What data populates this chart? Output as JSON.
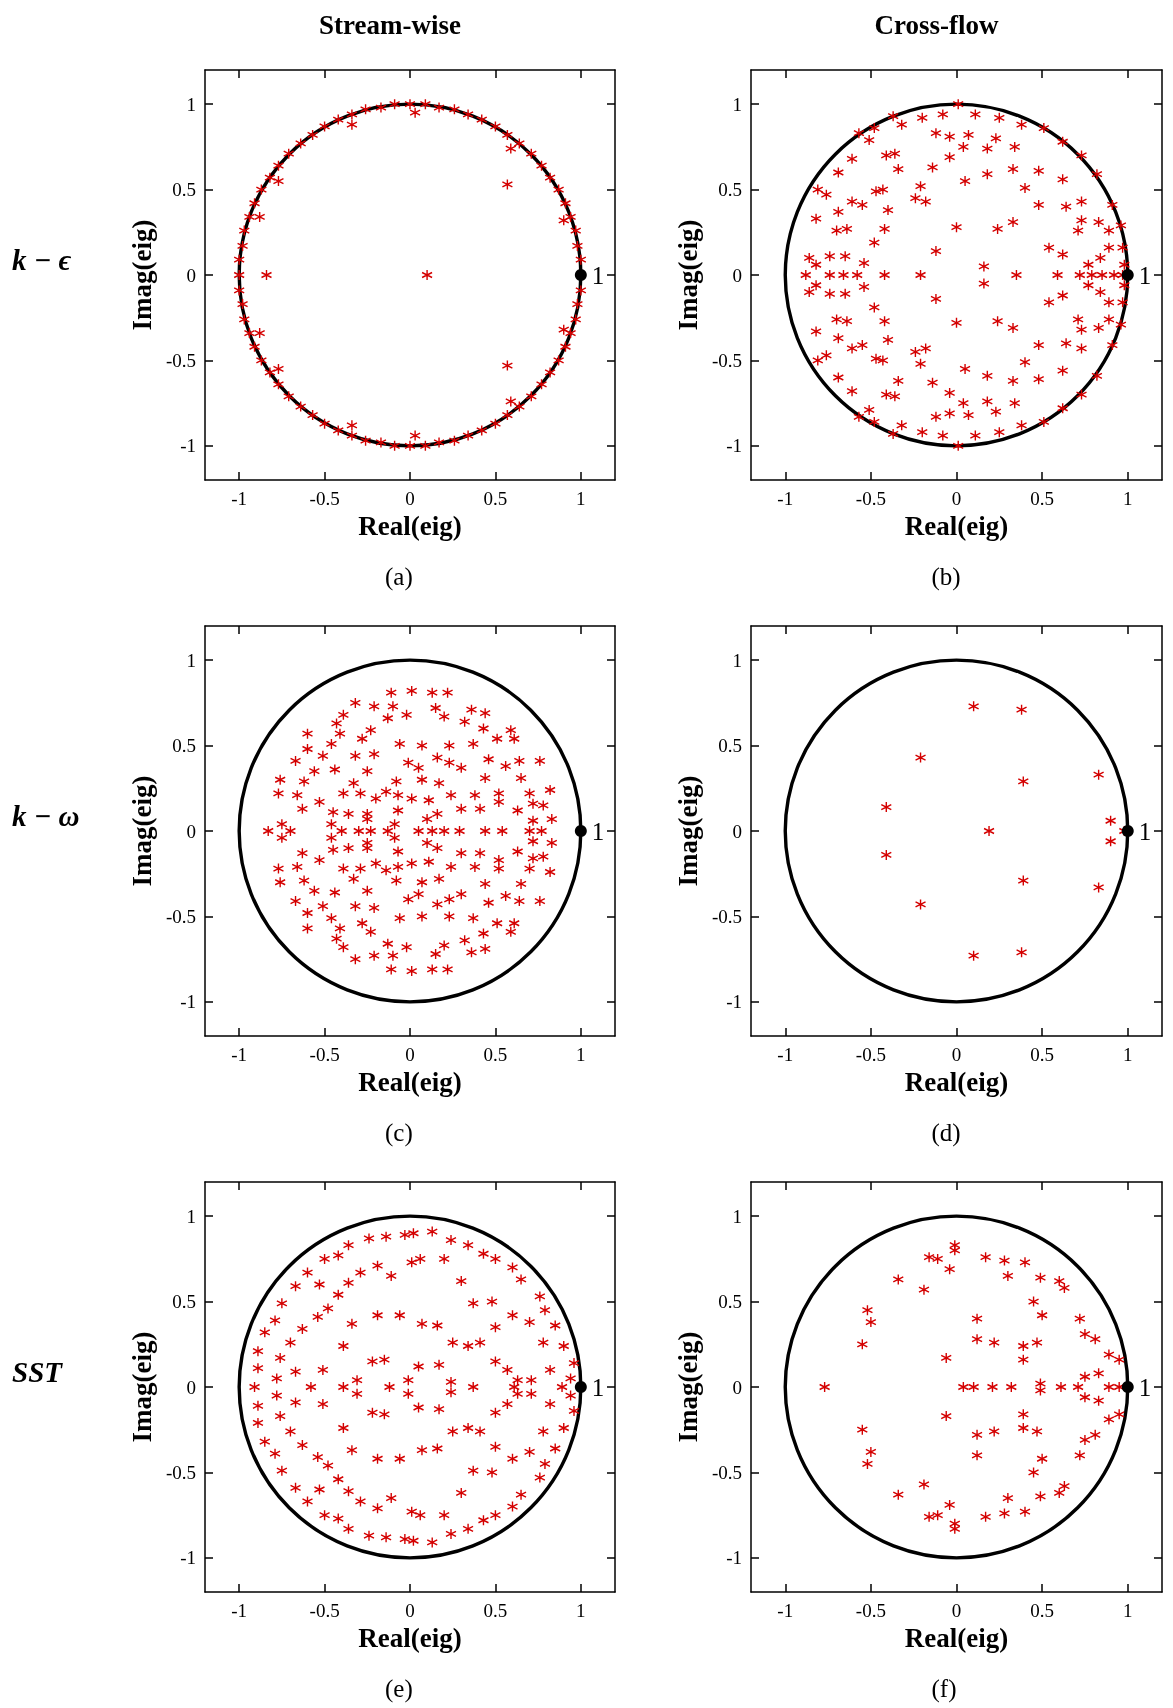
{
  "chart_data": [
    {
      "type": "scatter",
      "title": "Stream-wise",
      "subtitle": "(a)",
      "annotations": [
        "k − ϵ"
      ],
      "xlabel": "Real(eig)",
      "ylabel": "Imag(eig)",
      "marker": "cross",
      "xlim": [
        -1.2,
        1.2
      ],
      "ylim": [
        -1.2,
        1.2
      ],
      "xticks": [
        -1,
        -0.5,
        0,
        0.5,
        1
      ],
      "yticks": [
        -1,
        -0.5,
        0,
        0.5,
        1
      ],
      "series": [
        {
          "color": "#d40000",
          "x": [
            1,
            0.98,
            0.97,
            0.94,
            0.91,
            0.87,
            0.82,
            0.77,
            0.71,
            0.64,
            0.57,
            0.5,
            0.42,
            0.34,
            0.26,
            0.17,
            0.09,
            0,
            -0.09,
            -0.17,
            -0.26,
            -0.34,
            -0.42,
            -0.5,
            -0.57,
            -0.64,
            -0.71,
            -0.77,
            -0.82,
            -0.87,
            -0.91,
            -0.94,
            -0.97,
            -0.98,
            -1,
            -1,
            -1,
            -0.98,
            -0.97,
            -0.94,
            -0.91,
            -0.87,
            -0.82,
            -0.77,
            -0.71,
            -0.64,
            -0.57,
            -0.5,
            -0.42,
            -0.34,
            -0.26,
            -0.17,
            -0.09,
            0,
            0.09,
            0.17,
            0.26,
            0.34,
            0.42,
            0.5,
            0.57,
            0.64,
            0.71,
            0.77,
            0.82,
            0.87,
            0.91,
            0.94,
            0.97,
            0.98,
            1,
            -0.34,
            0.03,
            0.57,
            0.57,
            0.9,
            0.9,
            -0.84,
            0.1,
            -0.77,
            -0.88,
            -0.88,
            -0.77,
            0.59,
            0.59,
            0.03,
            -0.34
          ],
          "values": [
            0.09,
            0.17,
            0.26,
            0.34,
            0.42,
            0.5,
            0.57,
            0.64,
            0.71,
            0.77,
            0.82,
            0.87,
            0.91,
            0.94,
            0.97,
            0.98,
            1,
            1,
            1,
            0.98,
            0.97,
            0.94,
            0.91,
            0.87,
            0.82,
            0.77,
            0.71,
            0.64,
            0.57,
            0.5,
            0.42,
            0.34,
            0.26,
            0.17,
            0.09,
            0,
            -0.09,
            -0.17,
            -0.26,
            -0.34,
            -0.42,
            -0.5,
            -0.57,
            -0.64,
            -0.71,
            -0.77,
            -0.82,
            -0.87,
            -0.91,
            -0.94,
            -0.97,
            -0.98,
            -1,
            -1,
            -1,
            -0.98,
            -0.97,
            -0.94,
            -0.91,
            -0.87,
            -0.82,
            -0.77,
            -0.71,
            -0.64,
            -0.57,
            -0.5,
            -0.42,
            -0.34,
            -0.26,
            -0.17,
            -0.09,
            0.88,
            0.95,
            0.53,
            -0.53,
            0.32,
            -0.32,
            0,
            0,
            0.55,
            0.34,
            -0.34,
            -0.55,
            0.74,
            -0.74,
            -0.94,
            -0.88
          ]
        },
        {
          "name": "1",
          "color": "#000000",
          "marker": "circle",
          "x": [
            1
          ],
          "values": [
            0
          ]
        }
      ]
    },
    {
      "type": "scatter",
      "title": "Cross-flow",
      "subtitle": "(b)",
      "xlabel": "Real(eig)",
      "ylabel": "Imag(eig)",
      "marker": "cross",
      "xlim": [
        -1.2,
        1.2
      ],
      "ylim": [
        -1.2,
        1.2
      ],
      "xticks": [
        -1,
        -0.5,
        0,
        0.5,
        1
      ],
      "yticks": [
        -1,
        -0.5,
        0,
        0.5,
        1
      ],
      "series": [
        {
          "color": "#d40000",
          "x": [
            0.01,
            -0.37,
            -0.57,
            -0.48,
            -0.32,
            -0.2,
            -0.08,
            0.11,
            0.25,
            0.38,
            0.51,
            0.62,
            0.73,
            0.82,
            0.91,
            0.96,
            0.97,
            0.98,
            -0.12,
            -0.04,
            0.07,
            0.23,
            0.34,
            0.48,
            0.62,
            0.73,
            0.83,
            0.89,
            -0.51,
            -0.61,
            -0.69,
            -0.76,
            -0.81,
            -0.82,
            -0.86,
            -0.82,
            -0.74,
            -0.65,
            -0.7,
            -0.64,
            -0.69,
            -0.61,
            -0.55,
            -0.47,
            -0.43,
            -0.36,
            -0.41,
            -0.34,
            -0.14,
            -0.04,
            0.04,
            0.18,
            0.33,
            0.4,
            0.48,
            0.64,
            0.73,
            0.71,
            0.62,
            0.54,
            0.77,
            0.84,
            0.89,
            0.05,
            0.18,
            -0.21,
            -0.24,
            -0.18,
            -0.4,
            -0.42,
            -0.48,
            -0.54,
            0,
            0.24,
            0.33,
            -0.12,
            0.16,
            0.01,
            -0.37,
            -0.57,
            -0.48,
            -0.32,
            -0.2,
            -0.08,
            0.11,
            0.25,
            0.38,
            0.51,
            0.62,
            0.73,
            0.82,
            0.91,
            0.96,
            0.97,
            0.98,
            -0.12,
            -0.04,
            0.07,
            0.23,
            0.34,
            0.48,
            0.62,
            0.73,
            0.83,
            0.89,
            -0.51,
            -0.61,
            -0.69,
            -0.76,
            -0.81,
            -0.82,
            -0.86,
            -0.82,
            -0.74,
            -0.65,
            -0.7,
            -0.64,
            -0.69,
            -0.61,
            -0.55,
            -0.47,
            -0.43,
            -0.36,
            -0.41,
            -0.34,
            -0.14,
            -0.04,
            0.04,
            0.18,
            0.33,
            0.4,
            0.48,
            0.64,
            0.73,
            0.71,
            0.62,
            0.54,
            0.77,
            0.84,
            0.89,
            0.05,
            0.18,
            -0.21,
            -0.24,
            -0.18,
            -0.4,
            -0.42,
            -0.48,
            -0.54,
            0,
            0.24,
            0.33,
            -0.12,
            0.16,
            -0.88,
            -0.74,
            -0.66,
            -0.58,
            -0.42,
            -0.21,
            0.35,
            0.59,
            0.72,
            0.79,
            0.85,
            0.92,
            0.97
          ],
          "values": [
            1,
            0.93,
            0.83,
            0.86,
            0.88,
            0.92,
            0.94,
            0.94,
            0.92,
            0.88,
            0.86,
            0.78,
            0.7,
            0.59,
            0.41,
            0.29,
            0.16,
            0.06,
            0.83,
            0.81,
            0.82,
            0.8,
            0.75,
            0.61,
            0.56,
            0.43,
            0.31,
            0.16,
            0.79,
            0.68,
            0.6,
            0.47,
            0.5,
            0.33,
            0.1,
            0.06,
            0.11,
            0.11,
            0.26,
            0.27,
            0.37,
            0.43,
            0.41,
            0.49,
            0.5,
            0.71,
            0.7,
            0.62,
            0.63,
            0.69,
            0.75,
            0.74,
            0.62,
            0.51,
            0.41,
            0.4,
            0.32,
            0.26,
            0.12,
            0.16,
            0.06,
            0.1,
            0.26,
            0.55,
            0.59,
            0.52,
            0.45,
            0.43,
            0.38,
            0.27,
            0.19,
            0.07,
            0.28,
            0.27,
            0.31,
            0.14,
            0.05,
            -1,
            -0.93,
            -0.83,
            -0.86,
            -0.88,
            -0.92,
            -0.94,
            -0.94,
            -0.92,
            -0.88,
            -0.86,
            -0.78,
            -0.7,
            -0.59,
            -0.41,
            -0.29,
            -0.16,
            -0.06,
            -0.83,
            -0.81,
            -0.82,
            -0.8,
            -0.75,
            -0.61,
            -0.56,
            -0.43,
            -0.31,
            -0.16,
            -0.79,
            -0.68,
            -0.6,
            -0.47,
            -0.5,
            -0.33,
            -0.1,
            -0.06,
            -0.11,
            -0.11,
            -0.26,
            -0.27,
            -0.37,
            -0.43,
            -0.41,
            -0.49,
            -0.5,
            -0.71,
            -0.7,
            -0.62,
            -0.63,
            -0.69,
            -0.75,
            -0.74,
            -0.62,
            -0.51,
            -0.41,
            -0.4,
            -0.32,
            -0.26,
            -0.12,
            -0.16,
            -0.06,
            -0.1,
            -0.26,
            -0.55,
            -0.59,
            -0.52,
            -0.45,
            -0.43,
            -0.38,
            -0.27,
            -0.19,
            -0.07,
            -0.28,
            -0.27,
            -0.31,
            -0.14,
            -0.05,
            0,
            0,
            0,
            0,
            0,
            0,
            0,
            0,
            0,
            0,
            0,
            0,
            0
          ]
        },
        {
          "name": "1",
          "color": "#000000",
          "marker": "circle",
          "x": [
            1
          ],
          "values": [
            0
          ]
        }
      ]
    },
    {
      "type": "scatter",
      "subtitle": "(c)",
      "annotations": [
        "k − ω"
      ],
      "xlabel": "Real(eig)",
      "ylabel": "Imag(eig)",
      "marker": "cross",
      "xlim": [
        -1.2,
        1.2
      ],
      "ylim": [
        -1.2,
        1.2
      ],
      "xticks": [
        -1,
        -0.5,
        0,
        0.5,
        1
      ],
      "yticks": [
        -1,
        -0.5,
        0,
        0.5,
        1
      ],
      "series": [
        {
          "color": "#d40000",
          "x": [
            -0.11,
            0.01,
            0.13,
            0.22,
            -0.32,
            -0.21,
            -0.1,
            0.15,
            0.36,
            0.44,
            -0.39,
            -0.13,
            -0.02,
            0.2,
            0.32,
            -0.6,
            -0.43,
            0.43,
            0.59,
            0.51,
            0.61,
            -0.41,
            -0.23,
            -0.46,
            -0.28,
            -0.06,
            0.07,
            0.23,
            0.37,
            -0.6,
            -0.51,
            -0.32,
            -0.21,
            0.16,
            0.46,
            -0.67,
            0.64,
            0.76,
            0.56,
            -0.01,
            -0.56,
            -0.44,
            -0.25,
            0.05,
            0.23,
            0.3,
            -0.76,
            -0.62,
            -0.33,
            -0.08,
            0.07,
            0.17,
            0.44,
            0.65,
            -0.77,
            -0.66,
            -0.39,
            -0.29,
            -0.14,
            0.01,
            0.24,
            0.38,
            0.52,
            0.7,
            0.82,
            -0.53,
            -0.2,
            -0.07,
            0.11,
            0.52,
            0.72,
            0.78,
            -0.63,
            -0.45,
            -0.36,
            -0.25,
            -0.07,
            0.16,
            0.3,
            0.41,
            0.63,
            0.83,
            -0.75,
            -0.46,
            -0.25,
            0.1,
            0.72,
            -0.09,
            -0.11,
            0.01,
            0.13,
            0.22,
            -0.32,
            -0.21,
            -0.1,
            0.15,
            0.36,
            0.44,
            -0.39,
            -0.13,
            -0.02,
            0.2,
            0.32,
            -0.6,
            -0.43,
            0.43,
            0.59,
            0.51,
            0.61,
            -0.41,
            -0.23,
            -0.46,
            -0.28,
            -0.06,
            0.07,
            0.23,
            0.37,
            -0.6,
            -0.51,
            -0.32,
            -0.21,
            0.16,
            0.46,
            -0.67,
            0.64,
            0.76,
            0.56,
            -0.01,
            -0.56,
            -0.44,
            -0.25,
            0.05,
            0.23,
            0.3,
            -0.76,
            -0.62,
            -0.33,
            -0.08,
            0.07,
            0.17,
            0.44,
            0.65,
            -0.77,
            -0.66,
            -0.39,
            -0.29,
            -0.14,
            0.01,
            0.24,
            0.38,
            0.52,
            0.7,
            0.82,
            -0.53,
            -0.2,
            -0.07,
            0.11,
            0.52,
            0.72,
            0.78,
            -0.63,
            -0.45,
            -0.36,
            -0.25,
            -0.07,
            0.16,
            0.3,
            0.41,
            0.63,
            0.83,
            -0.75,
            -0.46,
            -0.25,
            0.1,
            0.72,
            -0.09,
            -0.83,
            -0.7,
            -0.4,
            -0.3,
            -0.23,
            -0.13,
            0.05,
            0.13,
            0.2,
            0.29,
            0.44,
            0.54,
            0.7,
            0.77
          ],
          "values": [
            0.81,
            0.82,
            0.81,
            0.81,
            0.75,
            0.73,
            0.73,
            0.72,
            0.71,
            0.69,
            0.68,
            0.66,
            0.68,
            0.67,
            0.64,
            0.57,
            0.63,
            0.6,
            0.59,
            0.54,
            0.54,
            0.57,
            0.59,
            0.51,
            0.54,
            0.51,
            0.5,
            0.5,
            0.51,
            0.48,
            0.44,
            0.44,
            0.45,
            0.43,
            0.42,
            0.41,
            0.41,
            0.41,
            0.38,
            0.4,
            0.35,
            0.36,
            0.35,
            0.37,
            0.4,
            0.37,
            0.3,
            0.29,
            0.28,
            0.29,
            0.3,
            0.28,
            0.31,
            0.31,
            0.22,
            0.21,
            0.22,
            0.22,
            0.23,
            0.19,
            0.21,
            0.21,
            0.22,
            0.22,
            0.24,
            0.17,
            0.19,
            0.21,
            0.18,
            0.17,
            0.16,
            0.15,
            0.13,
            0.11,
            0.1,
            0.1,
            0.12,
            0.1,
            0.13,
            0.13,
            0.12,
            0.07,
            0.04,
            0.04,
            0.07,
            0.07,
            0.06,
            0.04,
            -0.81,
            -0.82,
            -0.81,
            -0.81,
            -0.75,
            -0.73,
            -0.73,
            -0.72,
            -0.71,
            -0.69,
            -0.68,
            -0.66,
            -0.68,
            -0.67,
            -0.64,
            -0.57,
            -0.63,
            -0.6,
            -0.59,
            -0.54,
            -0.54,
            -0.57,
            -0.59,
            -0.51,
            -0.54,
            -0.51,
            -0.5,
            -0.5,
            -0.51,
            -0.48,
            -0.44,
            -0.44,
            -0.45,
            -0.43,
            -0.42,
            -0.41,
            -0.41,
            -0.41,
            -0.38,
            -0.4,
            -0.35,
            -0.36,
            -0.35,
            -0.37,
            -0.4,
            -0.37,
            -0.3,
            -0.29,
            -0.28,
            -0.29,
            -0.3,
            -0.28,
            -0.31,
            -0.31,
            -0.22,
            -0.21,
            -0.22,
            -0.22,
            -0.23,
            -0.19,
            -0.21,
            -0.21,
            -0.22,
            -0.22,
            -0.24,
            -0.17,
            -0.19,
            -0.21,
            -0.18,
            -0.17,
            -0.16,
            -0.15,
            -0.13,
            -0.11,
            -0.1,
            -0.1,
            -0.12,
            -0.1,
            -0.13,
            -0.13,
            -0.12,
            -0.07,
            -0.04,
            -0.04,
            -0.07,
            -0.07,
            -0.06,
            -0.04,
            0,
            0,
            0,
            0,
            0,
            0,
            0,
            0,
            0,
            0,
            0,
            0,
            0,
            0
          ]
        },
        {
          "name": "1",
          "color": "#000000",
          "marker": "circle",
          "x": [
            1
          ],
          "values": [
            0
          ]
        }
      ]
    },
    {
      "type": "scatter",
      "subtitle": "(d)",
      "xlabel": "Real(eig)",
      "ylabel": "Imag(eig)",
      "marker": "cross",
      "xlim": [
        -1.2,
        1.2
      ],
      "ylim": [
        -1.2,
        1.2
      ],
      "xticks": [
        -1,
        -0.5,
        0,
        0.5,
        1
      ],
      "yticks": [
        -1,
        -0.5,
        0,
        0.5,
        1
      ],
      "series": [
        {
          "color": "#d40000",
          "x": [
            0.1,
            0.38,
            -0.21,
            0.83,
            0.39,
            -0.41,
            0.9,
            0.19,
            0.98,
            0.9,
            -0.41,
            0.39,
            0.83,
            -0.21,
            0.38,
            0.1
          ],
          "values": [
            0.73,
            0.71,
            0.43,
            0.33,
            0.29,
            0.14,
            0.06,
            0,
            0,
            -0.06,
            -0.14,
            -0.29,
            -0.33,
            -0.43,
            -0.71,
            -0.73
          ]
        },
        {
          "name": "1",
          "color": "#000000",
          "marker": "circle",
          "x": [
            1
          ],
          "values": [
            0
          ]
        }
      ]
    },
    {
      "type": "scatter",
      "subtitle": "(e)",
      "annotations": [
        "SST"
      ],
      "xlabel": "Real(eig)",
      "ylabel": "Imag(eig)",
      "marker": "cross",
      "xlim": [
        -1.2,
        1.2
      ],
      "ylim": [
        -1.2,
        1.2
      ],
      "xticks": [
        -1,
        -0.5,
        0,
        0.5,
        1
      ],
      "yticks": [
        -1,
        -0.5,
        0,
        0.5,
        1
      ],
      "series": [
        {
          "color": "#d40000",
          "x": [
            -0.89,
            -0.89,
            -0.85,
            -0.79,
            -0.75,
            -0.67,
            -0.6,
            -0.53,
            -0.5,
            -0.42,
            -0.36,
            -0.24,
            -0.14,
            -0.03,
            0.02,
            0.13,
            0.24,
            0.34,
            0.43,
            0.5,
            0.6,
            0.65,
            0.76,
            0.79,
            0.85,
            0.9,
            0.96,
            0.94,
            0.78,
            0.7,
            0.6,
            0.48,
            0.37,
            0.3,
            0.2,
            0.06,
            0.01,
            -0.11,
            -0.19,
            -0.29,
            -0.36,
            -0.42,
            -0.48,
            -0.54,
            -0.63,
            -0.7,
            -0.76,
            -0.78,
            -0.67,
            -0.51,
            -0.39,
            -0.34,
            -0.19,
            -0.06,
            0.07,
            0.16,
            0.25,
            0.34,
            0.41,
            0.5,
            0.5,
            0.57,
            0.63,
            0.71,
            0.82,
            -0.22,
            -0.31,
            -0.15,
            -0.01,
            0.05,
            0.17,
            0.24,
            -0.89,
            -0.89,
            -0.85,
            -0.79,
            -0.75,
            -0.67,
            -0.6,
            -0.53,
            -0.5,
            -0.42,
            -0.36,
            -0.24,
            -0.14,
            -0.03,
            0.02,
            0.13,
            0.24,
            0.34,
            0.43,
            0.5,
            0.6,
            0.65,
            0.76,
            0.79,
            0.85,
            0.9,
            0.96,
            0.94,
            0.78,
            0.7,
            0.6,
            0.48,
            0.37,
            0.3,
            0.2,
            0.06,
            0.01,
            -0.11,
            -0.19,
            -0.29,
            -0.36,
            -0.42,
            -0.48,
            -0.54,
            -0.63,
            -0.7,
            -0.76,
            -0.78,
            -0.67,
            -0.51,
            -0.39,
            -0.34,
            -0.19,
            -0.06,
            0.07,
            0.16,
            0.25,
            0.34,
            0.41,
            0.5,
            0.5,
            0.57,
            0.63,
            0.71,
            0.82,
            -0.22,
            -0.31,
            -0.15,
            -0.01,
            0.05,
            0.17,
            0.24,
            -0.91,
            -0.58,
            -0.39,
            -0.12,
            0.37,
            0.61,
            0.89
          ],
          "values": [
            0.21,
            0.11,
            0.32,
            0.39,
            0.49,
            0.59,
            0.67,
            0.6,
            0.75,
            0.77,
            0.83,
            0.87,
            0.88,
            0.89,
            0.9,
            0.91,
            0.86,
            0.83,
            0.78,
            0.75,
            0.7,
            0.63,
            0.53,
            0.45,
            0.36,
            0.24,
            0.14,
            0.05,
            0.26,
            0.38,
            0.42,
            0.5,
            0.49,
            0.62,
            0.75,
            0.75,
            0.73,
            0.65,
            0.71,
            0.67,
            0.61,
            0.54,
            0.46,
            0.41,
            0.34,
            0.26,
            0.17,
            0.05,
            0.09,
            0.1,
            0.24,
            0.37,
            0.42,
            0.42,
            0.37,
            0.36,
            0.26,
            0.24,
            0.26,
            0.35,
            0.15,
            0.1,
            0.04,
            0.04,
            0.1,
            0.15,
            0.04,
            0.16,
            0.04,
            0.12,
            0.13,
            0.03,
            -0.21,
            -0.11,
            -0.32,
            -0.39,
            -0.49,
            -0.59,
            -0.67,
            -0.6,
            -0.75,
            -0.77,
            -0.83,
            -0.87,
            -0.88,
            -0.89,
            -0.9,
            -0.91,
            -0.86,
            -0.83,
            -0.78,
            -0.75,
            -0.7,
            -0.63,
            -0.53,
            -0.45,
            -0.36,
            -0.24,
            -0.14,
            -0.05,
            -0.26,
            -0.38,
            -0.42,
            -0.5,
            -0.49,
            -0.62,
            -0.75,
            -0.75,
            -0.73,
            -0.65,
            -0.71,
            -0.67,
            -0.61,
            -0.54,
            -0.46,
            -0.41,
            -0.34,
            -0.26,
            -0.17,
            -0.05,
            -0.09,
            -0.1,
            -0.24,
            -0.37,
            -0.42,
            -0.42,
            -0.37,
            -0.36,
            -0.26,
            -0.24,
            -0.26,
            -0.35,
            -0.15,
            -0.1,
            -0.04,
            -0.04,
            -0.1,
            -0.15,
            -0.04,
            -0.16,
            -0.04,
            -0.12,
            -0.13,
            -0.03,
            0,
            0,
            0,
            0,
            0,
            0,
            0
          ]
        },
        {
          "name": "1",
          "color": "#000000",
          "marker": "circle",
          "x": [
            1
          ],
          "values": [
            0
          ]
        }
      ]
    },
    {
      "type": "scatter",
      "subtitle": "(f)",
      "xlabel": "Real(eig)",
      "ylabel": "Imag(eig)",
      "marker": "cross",
      "xlim": [
        -1.2,
        1.2
      ],
      "ylim": [
        -1.2,
        1.2
      ],
      "xticks": [
        -1,
        -0.5,
        0,
        0.5,
        1
      ],
      "yticks": [
        -1,
        -0.5,
        0,
        0.5,
        1
      ],
      "series": [
        {
          "color": "#d40000",
          "x": [
            -0.01,
            -0.01,
            -0.16,
            -0.11,
            -0.04,
            -0.34,
            -0.19,
            0.17,
            0.28,
            0.4,
            0.3,
            0.49,
            0.6,
            0.63,
            0.45,
            0.5,
            -0.52,
            -0.5,
            -0.55,
            0.12,
            0.12,
            0.22,
            0.39,
            0.47,
            0.39,
            -0.06,
            0.72,
            0.75,
            0.81,
            0.89,
            0.95,
            0.83,
            0.75,
            -0.01,
            -0.01,
            -0.16,
            -0.11,
            -0.04,
            -0.34,
            -0.19,
            0.17,
            0.28,
            0.4,
            0.3,
            0.49,
            0.6,
            0.63,
            0.45,
            0.5,
            -0.52,
            -0.5,
            -0.55,
            0.12,
            0.12,
            0.22,
            0.39,
            0.47,
            0.39,
            -0.06,
            0.72,
            0.75,
            0.81,
            0.89,
            0.95,
            0.83,
            0.75,
            -0.77,
            0.04,
            0.1,
            0.21,
            0.32,
            0.49,
            0.49,
            0.61,
            0.71,
            0.89,
            0.95
          ],
          "values": [
            0.83,
            0.8,
            0.76,
            0.75,
            0.69,
            0.63,
            0.57,
            0.76,
            0.74,
            0.73,
            0.65,
            0.64,
            0.62,
            0.58,
            0.5,
            0.42,
            0.45,
            0.38,
            0.25,
            0.4,
            0.28,
            0.26,
            0.24,
            0.26,
            0.16,
            0.17,
            0.4,
            0.31,
            0.28,
            0.19,
            0.16,
            0.08,
            0.06,
            -0.83,
            -0.8,
            -0.76,
            -0.75,
            -0.69,
            -0.63,
            -0.57,
            -0.76,
            -0.74,
            -0.73,
            -0.65,
            -0.64,
            -0.62,
            -0.58,
            -0.5,
            -0.42,
            -0.45,
            -0.38,
            -0.25,
            -0.4,
            -0.28,
            -0.26,
            -0.24,
            -0.26,
            -0.16,
            -0.17,
            -0.4,
            -0.31,
            -0.28,
            -0.19,
            -0.16,
            -0.08,
            -0.06,
            0,
            0,
            0,
            0,
            0,
            0.02,
            -0.02,
            0,
            0,
            0,
            0
          ]
        },
        {
          "name": "1",
          "color": "#000000",
          "marker": "circle",
          "x": [
            1
          ],
          "values": [
            0
          ]
        }
      ]
    }
  ]
}
